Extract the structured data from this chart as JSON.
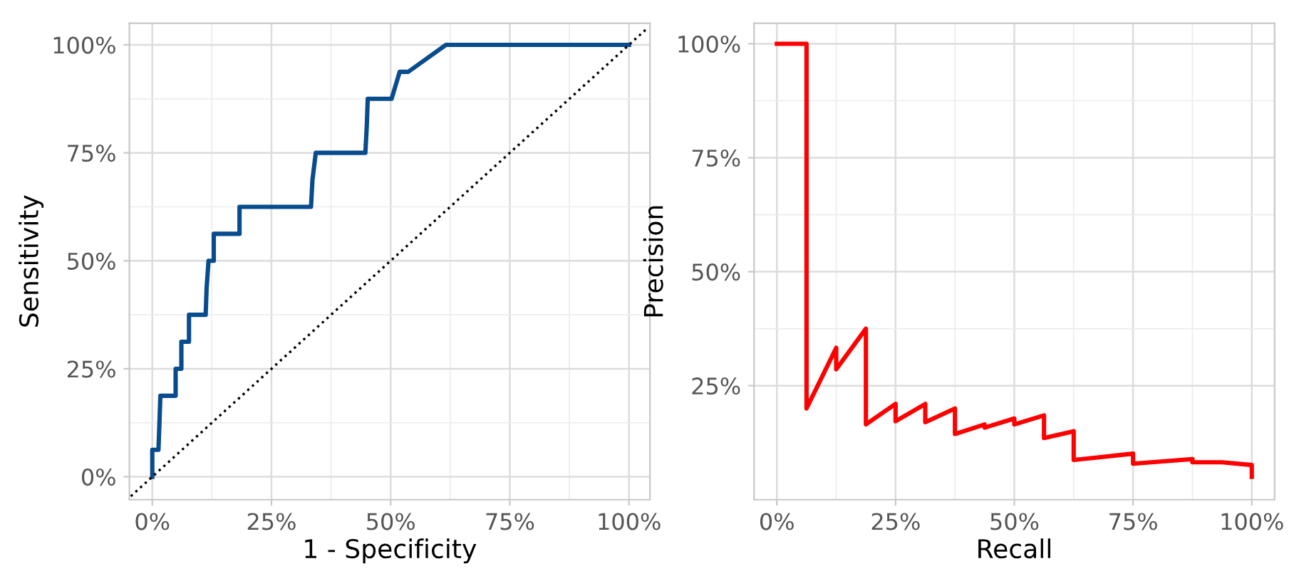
{
  "chart_data": [
    {
      "type": "line",
      "xlabel": "1 - Specificity",
      "ylabel": "Sensitivity",
      "xlim": [
        -0.048,
        1.044
      ],
      "ylim": [
        -0.053,
        1.05
      ],
      "xticks": [
        {
          "value": 0,
          "label": "0%"
        },
        {
          "value": 0.25,
          "label": "25%"
        },
        {
          "value": 0.5,
          "label": "50%"
        },
        {
          "value": 0.75,
          "label": "75%"
        },
        {
          "value": 1,
          "label": "100%"
        }
      ],
      "yticks": [
        {
          "value": 0,
          "label": "0%"
        },
        {
          "value": 0.25,
          "label": "25%"
        },
        {
          "value": 0.5,
          "label": "50%"
        },
        {
          "value": 0.75,
          "label": "75%"
        },
        {
          "value": 1,
          "label": "100%"
        }
      ],
      "grid": true,
      "series": [
        {
          "color": "#084c8d",
          "line_style": "solid",
          "x": [
            0,
            0,
            0.013,
            0.015,
            0.017,
            0.049,
            0.049,
            0.061,
            0.061,
            0.077,
            0.077,
            0.112,
            0.114,
            0.118,
            0.129,
            0.129,
            0.183,
            0.183,
            0.333,
            0.336,
            0.343,
            0.447,
            0.45,
            0.452,
            0.502,
            0.519,
            0.537,
            0.616,
            1
          ],
          "values": [
            0,
            0.0625,
            0.0625,
            0.125,
            0.1875,
            0.1875,
            0.25,
            0.25,
            0.3125,
            0.3125,
            0.375,
            0.375,
            0.4375,
            0.5,
            0.5,
            0.5625,
            0.5625,
            0.625,
            0.625,
            0.6875,
            0.75,
            0.75,
            0.8125,
            0.875,
            0.875,
            0.9375,
            0.9375,
            1,
            1
          ]
        },
        {
          "color": "#000000",
          "line_style": "dotted",
          "x": [
            -0.045,
            1.04
          ],
          "values": [
            -0.045,
            1.04
          ]
        }
      ]
    },
    {
      "type": "line",
      "xlabel": "Recall",
      "ylabel": "Precision",
      "xlim": [
        -0.048,
        1.048
      ],
      "ylim": [
        0,
        1.045
      ],
      "xticks": [
        {
          "value": 0,
          "label": "0%"
        },
        {
          "value": 0.25,
          "label": "25%"
        },
        {
          "value": 0.5,
          "label": "50%"
        },
        {
          "value": 0.75,
          "label": "75%"
        },
        {
          "value": 1,
          "label": "100%"
        }
      ],
      "yticks": [
        {
          "value": 0.25,
          "label": "25%"
        },
        {
          "value": 0.5,
          "label": "50%"
        },
        {
          "value": 0.75,
          "label": "75%"
        },
        {
          "value": 1,
          "label": "100%"
        }
      ],
      "grid": true,
      "series": [
        {
          "color": "#ff0000",
          "line_style": "solid",
          "x": [
            0,
            0.0625,
            0.0625,
            0.125,
            0.125,
            0.1875,
            0.1875,
            0.25,
            0.25,
            0.3125,
            0.3125,
            0.375,
            0.375,
            0.4375,
            0.4375,
            0.5,
            0.5,
            0.5625,
            0.5625,
            0.625,
            0.625,
            0.75,
            0.75,
            0.875,
            0.875,
            0.9375,
            1,
            1
          ],
          "values": [
            1,
            1,
            0.2,
            0.333,
            0.286,
            0.375,
            0.165,
            0.21,
            0.172,
            0.21,
            0.17,
            0.2,
            0.144,
            0.165,
            0.158,
            0.178,
            0.165,
            0.185,
            0.135,
            0.15,
            0.087,
            0.101,
            0.079,
            0.089,
            0.082,
            0.082,
            0.076,
            0.05
          ]
        }
      ]
    }
  ]
}
